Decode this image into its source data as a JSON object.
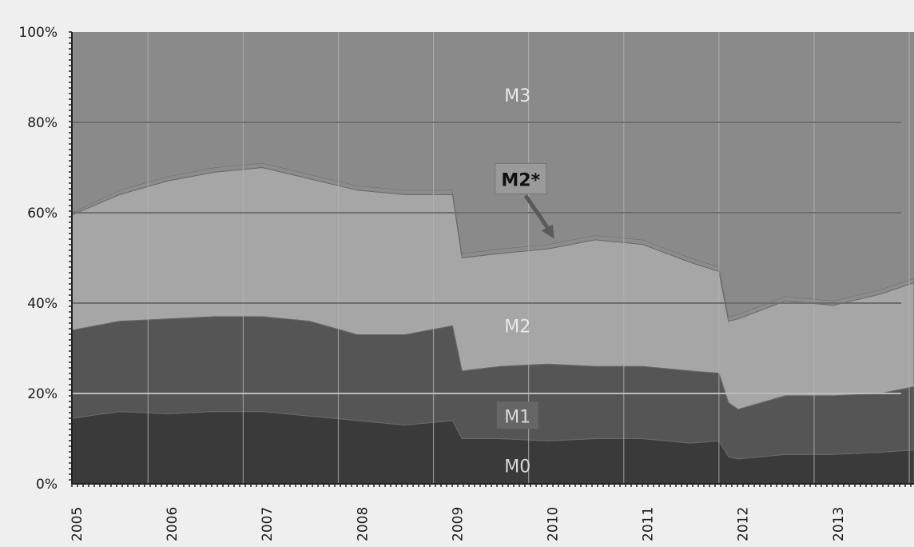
{
  "chart_data": {
    "type": "area",
    "stacking": "percent",
    "x_ticks": [
      2005,
      2006,
      2007,
      2008,
      2009,
      2010,
      2011,
      2012,
      2013
    ],
    "y_ticks": [
      "0%",
      "20%",
      "40%",
      "60%",
      "80%",
      "100%"
    ],
    "ylim": [
      0,
      100
    ],
    "xlim": [
      2005,
      2013.85
    ],
    "grid": true,
    "series": [
      {
        "name": "M0",
        "color": "#3a3a3a",
        "x": [
          2005,
          2005.5,
          2006,
          2006.5,
          2007,
          2007.5,
          2008,
          2008.5,
          2009,
          2009.1,
          2009.5,
          2010,
          2010.5,
          2011,
          2011.5,
          2011.8,
          2011.9,
          2012,
          2012.5,
          2013,
          2013.5,
          2013.85
        ],
        "values": [
          14.5,
          16,
          15.5,
          16,
          16,
          15,
          14,
          13,
          14,
          10,
          10,
          9.5,
          10,
          10,
          9,
          9.5,
          6,
          5.5,
          6.5,
          6.5,
          7,
          7.5
        ]
      },
      {
        "name": "M1",
        "color": "#555555",
        "x": [
          2005,
          2005.5,
          2006,
          2006.5,
          2007,
          2007.5,
          2008,
          2008.5,
          2009,
          2009.1,
          2009.5,
          2010,
          2010.5,
          2011,
          2011.5,
          2011.8,
          2011.9,
          2012,
          2012.5,
          2013,
          2013.5,
          2013.85
        ],
        "values": [
          19.5,
          20,
          21,
          21,
          21,
          21,
          19,
          20,
          21,
          15,
          16,
          17,
          16,
          16,
          16,
          15,
          12,
          11,
          13,
          13,
          13,
          14
        ]
      },
      {
        "name": "M2",
        "color": "#a6a6a6",
        "x": [
          2005,
          2005.5,
          2006,
          2006.5,
          2007,
          2007.5,
          2008,
          2008.5,
          2009,
          2009.1,
          2009.5,
          2010,
          2010.5,
          2011,
          2011.5,
          2011.8,
          2011.9,
          2012,
          2012.5,
          2013,
          2013.5,
          2013.85
        ],
        "values": [
          25.5,
          28,
          30.5,
          32,
          33,
          31.5,
          32,
          31,
          29,
          25,
          25,
          25.5,
          28,
          27,
          24,
          22.5,
          18,
          20,
          21,
          20,
          22,
          23
        ]
      },
      {
        "name": "M2*",
        "color": "#8c8c8c",
        "x": [
          2005,
          2005.5,
          2006,
          2006.5,
          2007,
          2007.5,
          2008,
          2008.5,
          2009,
          2009.1,
          2009.5,
          2010,
          2010.5,
          2011,
          2011.5,
          2011.8,
          2011.9,
          2012,
          2012.5,
          2013,
          2013.5,
          2013.85
        ],
        "values": [
          0.5,
          1,
          1,
          1,
          1,
          1,
          1,
          1,
          1,
          1,
          1,
          1,
          1,
          1,
          1,
          1,
          1,
          1,
          1,
          1,
          1,
          1
        ]
      },
      {
        "name": "M3",
        "color": "#8a8a8a",
        "x": [
          2005,
          2005.5,
          2006,
          2006.5,
          2007,
          2007.5,
          2008,
          2008.5,
          2009,
          2009.1,
          2009.5,
          2010,
          2010.5,
          2011,
          2011.5,
          2011.8,
          2011.9,
          2012,
          2012.5,
          2013,
          2013.5,
          2013.85
        ],
        "values": [
          40,
          35,
          32,
          30,
          29,
          31.5,
          34,
          35,
          35,
          49,
          48,
          47,
          45,
          46,
          50,
          52,
          63,
          62.5,
          58.5,
          59.5,
          57,
          54.5
        ]
      }
    ],
    "annotations": [
      {
        "text": "M3",
        "x": 2009.7,
        "y": 86
      },
      {
        "text": "M2*",
        "x": 2009.7,
        "y": 67
      },
      {
        "text": "M2",
        "x": 2009.7,
        "y": 35
      },
      {
        "text": "M1",
        "x": 2009.7,
        "y": 15
      },
      {
        "text": "M0",
        "x": 2009.7,
        "y": 4
      }
    ]
  }
}
